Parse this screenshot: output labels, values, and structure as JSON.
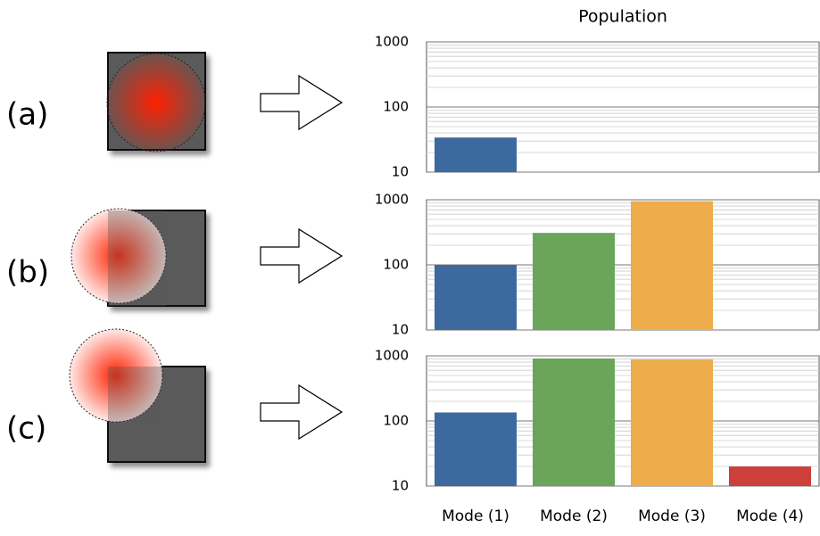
{
  "chart_data": [
    {
      "type": "bar",
      "title": "Population",
      "panel_label": "(a)",
      "log_scale": true,
      "grid": true,
      "values": [
        34,
        null,
        null,
        null
      ],
      "colors": [
        "#3d6a9e",
        "#6aa55a",
        "#ecad4a",
        "#cd3f3a"
      ],
      "ylim": [
        10,
        1000
      ],
      "yticks": [
        10,
        100,
        1000
      ]
    },
    {
      "type": "bar",
      "panel_label": "(b)",
      "log_scale": true,
      "grid": true,
      "values": [
        100,
        310,
        950,
        null
      ],
      "colors": [
        "#3d6a9e",
        "#6aa55a",
        "#ecad4a",
        "#cd3f3a"
      ],
      "ylim": [
        10,
        1000
      ],
      "yticks": [
        10,
        100,
        1000
      ]
    },
    {
      "type": "bar",
      "panel_label": "(c)",
      "log_scale": true,
      "grid": true,
      "categories": [
        "Mode (1)",
        "Mode (2)",
        "Mode (3)",
        "Mode (4)"
      ],
      "values": [
        135,
        910,
        880,
        20
      ],
      "colors": [
        "#3d6a9e",
        "#6aa55a",
        "#ecad4a",
        "#cd3f3a"
      ],
      "ylim": [
        10,
        1000
      ],
      "yticks": [
        10,
        100,
        1000
      ]
    }
  ]
}
